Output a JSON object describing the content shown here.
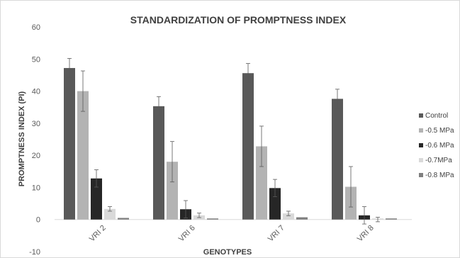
{
  "chart_data": {
    "type": "bar",
    "title": "STANDARDIZATION OF PROMPTNESS INDEX",
    "xlabel": "GENOTYPES",
    "ylabel": "PROMPTNESS INDEX (PI)",
    "ylim": [
      -10,
      60
    ],
    "yticks": [
      -10,
      0,
      10,
      20,
      30,
      40,
      50,
      60
    ],
    "categories": [
      "VRI 2",
      "VRI 6",
      "VRI 7",
      "VRI 8"
    ],
    "legend_position": "right",
    "grid": false,
    "series": [
      {
        "name": "Control",
        "color": "#595959",
        "values": [
          47.2,
          35.3,
          45.6,
          37.6
        ],
        "errors": [
          3.0,
          3.0,
          3.0,
          3.0
        ]
      },
      {
        "name": "-0.5 MPa",
        "color": "#b3b3b3",
        "values": [
          40.0,
          18.0,
          22.8,
          10.2
        ],
        "errors": [
          6.3,
          6.3,
          6.3,
          6.3
        ]
      },
      {
        "name": "-0.6 MPa",
        "color": "#262626",
        "values": [
          12.8,
          3.2,
          9.8,
          1.3
        ],
        "errors": [
          2.7,
          2.7,
          2.7,
          2.7
        ]
      },
      {
        "name": "-0.7MPa",
        "color": "#d9d9d9",
        "values": [
          3.3,
          1.3,
          1.9,
          0.0
        ],
        "errors": [
          0.7,
          0.7,
          0.7,
          0.7
        ]
      },
      {
        "name": "-0.8 MPa",
        "color": "#7f7f7f",
        "values": [
          0.5,
          0.3,
          0.7,
          0.0
        ],
        "errors": [
          0,
          0,
          0,
          0
        ]
      }
    ]
  }
}
